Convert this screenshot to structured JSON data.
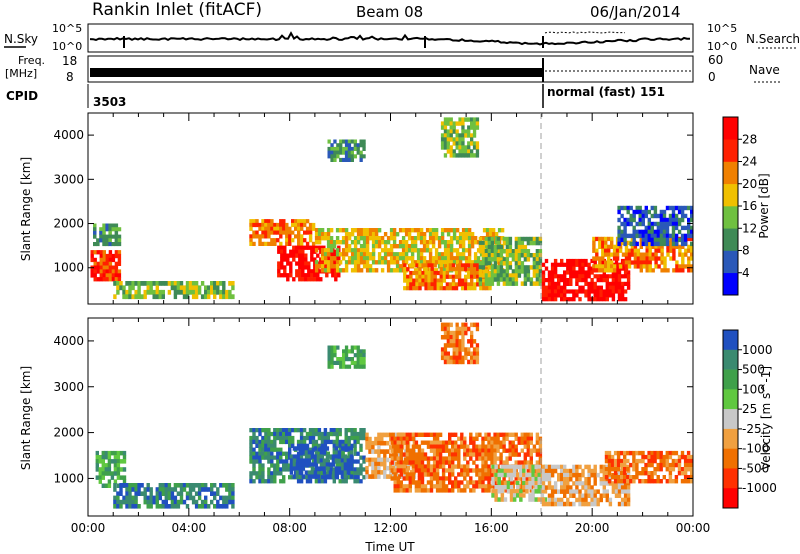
{
  "header": {
    "title": "Rankin Inlet (fitACF)",
    "beam": "Beam 08",
    "date": "06/Jan/2014"
  },
  "strip_panels": {
    "nsky_label": "N.Sky",
    "nsky_ticks": [
      "10^5",
      "10^0"
    ],
    "nsearch_label": "N.Search",
    "nsearch_ticks": [
      "10^5",
      "10^0"
    ],
    "freq_label_1": "Freq.",
    "freq_label_2": "[MHz]",
    "freq_ticks": [
      "18",
      "8"
    ],
    "nave_label": "Nave",
    "nave_ticks": [
      "60",
      "0"
    ],
    "cpid_label": "CPID",
    "cpid_left": "3503",
    "cpid_right": "normal (fast) 151"
  },
  "chart_data": [
    {
      "type": "heatmap",
      "name": "power-panel",
      "ylabel": "Slant Range [km]",
      "xlabel": "",
      "xlim_hours": [
        0,
        24
      ],
      "ylim": [
        180,
        4500
      ],
      "x_ticks": [
        "00:00",
        "04:00",
        "08:00",
        "12:00",
        "16:00",
        "20:00",
        "00:00"
      ],
      "y_ticks": [
        "1000",
        "2000",
        "3000",
        "4000"
      ],
      "y_tick_values": [
        1000,
        2000,
        3000,
        4000
      ],
      "colorbar_label": "Power [dB]",
      "colorbar_ticks": [
        "4",
        "8",
        "12",
        "16",
        "20",
        "24",
        "28"
      ],
      "colorbar_colors": [
        "#0000ff",
        "#2a58b8",
        "#3f8a56",
        "#6fc040",
        "#f0c000",
        "#f08000",
        "#ff2000",
        "#ff0000"
      ],
      "bands": [
        {
          "t0": 0.1,
          "t1": 1.3,
          "r0": 700,
          "r1": 1400,
          "level": 26
        },
        {
          "t0": 0.2,
          "t1": 1.3,
          "r0": 1500,
          "r1": 2000,
          "level": 8
        },
        {
          "t0": 1.0,
          "t1": 5.8,
          "r0": 300,
          "r1": 700,
          "level": 14
        },
        {
          "t0": 6.4,
          "t1": 9.0,
          "r0": 1500,
          "r1": 2100,
          "level": 20
        },
        {
          "t0": 7.5,
          "t1": 10.0,
          "r0": 700,
          "r1": 1500,
          "level": 28
        },
        {
          "t0": 9.0,
          "t1": 16.5,
          "r0": 900,
          "r1": 1900,
          "level": 18
        },
        {
          "t0": 12.5,
          "t1": 16.0,
          "r0": 500,
          "r1": 1100,
          "level": 22
        },
        {
          "t0": 15.5,
          "t1": 18.0,
          "r0": 600,
          "r1": 1700,
          "level": 12
        },
        {
          "t0": 18.0,
          "t1": 21.5,
          "r0": 250,
          "r1": 1200,
          "level": 28
        },
        {
          "t0": 20.0,
          "t1": 24.0,
          "r0": 900,
          "r1": 1700,
          "level": 20
        },
        {
          "t0": 21.0,
          "t1": 24.0,
          "r0": 1500,
          "r1": 2400,
          "level": 6
        },
        {
          "t0": 9.5,
          "t1": 11.0,
          "r0": 3400,
          "r1": 3900,
          "level": 10
        },
        {
          "t0": 14.0,
          "t1": 15.5,
          "r0": 3500,
          "r1": 4400,
          "level": 12
        }
      ]
    },
    {
      "type": "heatmap",
      "name": "velocity-panel",
      "ylabel": "Slant Range [km]",
      "xlabel": "Time UT",
      "xlim_hours": [
        0,
        24
      ],
      "ylim": [
        180,
        4500
      ],
      "x_ticks": [
        "00:00",
        "04:00",
        "08:00",
        "12:00",
        "16:00",
        "20:00",
        "00:00"
      ],
      "y_ticks": [
        "1000",
        "2000",
        "3000",
        "4000"
      ],
      "y_tick_values": [
        1000,
        2000,
        3000,
        4000
      ],
      "colorbar_label": "Velocity [m s^-1]",
      "colorbar_ticks": [
        "1000",
        "500",
        "100",
        "25",
        "-25",
        "-100",
        "-500",
        "-1000"
      ],
      "colorbar_colors": [
        "#2050c0",
        "#3a8a70",
        "#3fa04a",
        "#60c840",
        "#c8c8c8",
        "#f0a040",
        "#f07000",
        "#ff3000",
        "#ff0000"
      ],
      "bands": [
        {
          "t0": 0.3,
          "t1": 1.5,
          "r0": 800,
          "r1": 1600,
          "level": 100
        },
        {
          "t0": 1.0,
          "t1": 5.8,
          "r0": 350,
          "r1": 900,
          "level": 500
        },
        {
          "t0": 6.4,
          "t1": 11.0,
          "r0": 900,
          "r1": 2100,
          "level": 500
        },
        {
          "t0": 8.0,
          "t1": 10.5,
          "r0": 1000,
          "r1": 1700,
          "level": 1000
        },
        {
          "t0": 11.0,
          "t1": 13.0,
          "r0": 1000,
          "r1": 2000,
          "level": -100
        },
        {
          "t0": 12.0,
          "t1": 18.0,
          "r0": 700,
          "r1": 2000,
          "level": -500
        },
        {
          "t0": 16.0,
          "t1": 18.2,
          "r0": 500,
          "r1": 1300,
          "level": -25
        },
        {
          "t0": 18.0,
          "t1": 21.5,
          "r0": 400,
          "r1": 1300,
          "level": -100
        },
        {
          "t0": 20.5,
          "t1": 24.0,
          "r0": 900,
          "r1": 1600,
          "level": -500
        },
        {
          "t0": 9.5,
          "t1": 11.0,
          "r0": 3400,
          "r1": 3900,
          "level": 100
        },
        {
          "t0": 14.0,
          "t1": 15.5,
          "r0": 3500,
          "r1": 4400,
          "level": -500
        }
      ]
    }
  ]
}
